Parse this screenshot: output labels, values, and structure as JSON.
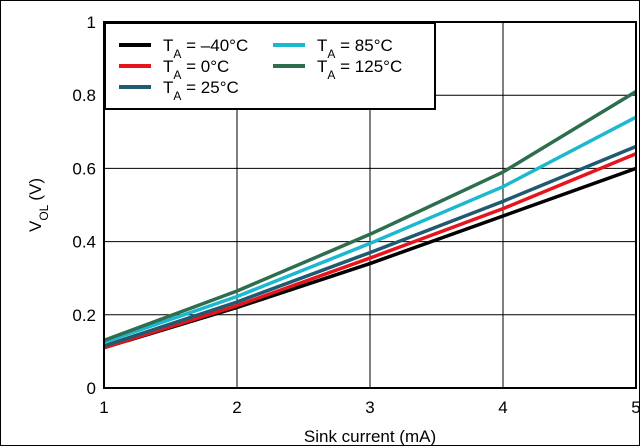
{
  "chart_data": {
    "type": "line",
    "title": "",
    "xlabel": "Sink current (mA)",
    "ylabel": {
      "main": "V",
      "sub": "OL",
      "unit": "(V)"
    },
    "xlim": [
      1,
      5
    ],
    "ylim": [
      0,
      1
    ],
    "x_ticks": [
      "1",
      "2",
      "3",
      "4",
      "5"
    ],
    "y_ticks": [
      "0",
      "0.2",
      "0.4",
      "0.6",
      "0.8",
      "1"
    ],
    "grid": true,
    "legend_position": "top-left",
    "x": [
      1,
      2,
      3,
      4,
      5
    ],
    "series": [
      {
        "name": "T_A = –40°C",
        "label_main": "T",
        "label_sub": "A",
        "label_rest": " = –40°C",
        "color": "#000000",
        "values": [
          0.11,
          0.22,
          0.34,
          0.47,
          0.6
        ]
      },
      {
        "name": "T_A = 0°C",
        "label_main": "T",
        "label_sub": "A",
        "label_rest": " = 0°C",
        "color": "#e8141c",
        "values": [
          0.11,
          0.225,
          0.355,
          0.49,
          0.64
        ]
      },
      {
        "name": "T_A = 25°C",
        "label_main": "T",
        "label_sub": "A",
        "label_rest": " = 25°C",
        "color": "#1f5a6e",
        "values": [
          0.115,
          0.235,
          0.37,
          0.51,
          0.66
        ]
      },
      {
        "name": "T_A = 85°C",
        "label_main": "T",
        "label_sub": "A",
        "label_rest": " = 85°C",
        "color": "#1cb8d0",
        "values": [
          0.125,
          0.25,
          0.395,
          0.55,
          0.74
        ]
      },
      {
        "name": "T_A = 125°C",
        "label_main": "T",
        "label_sub": "A",
        "label_rest": " = 125°C",
        "color": "#2e6e4e",
        "values": [
          0.13,
          0.265,
          0.42,
          0.59,
          0.81
        ]
      }
    ]
  }
}
